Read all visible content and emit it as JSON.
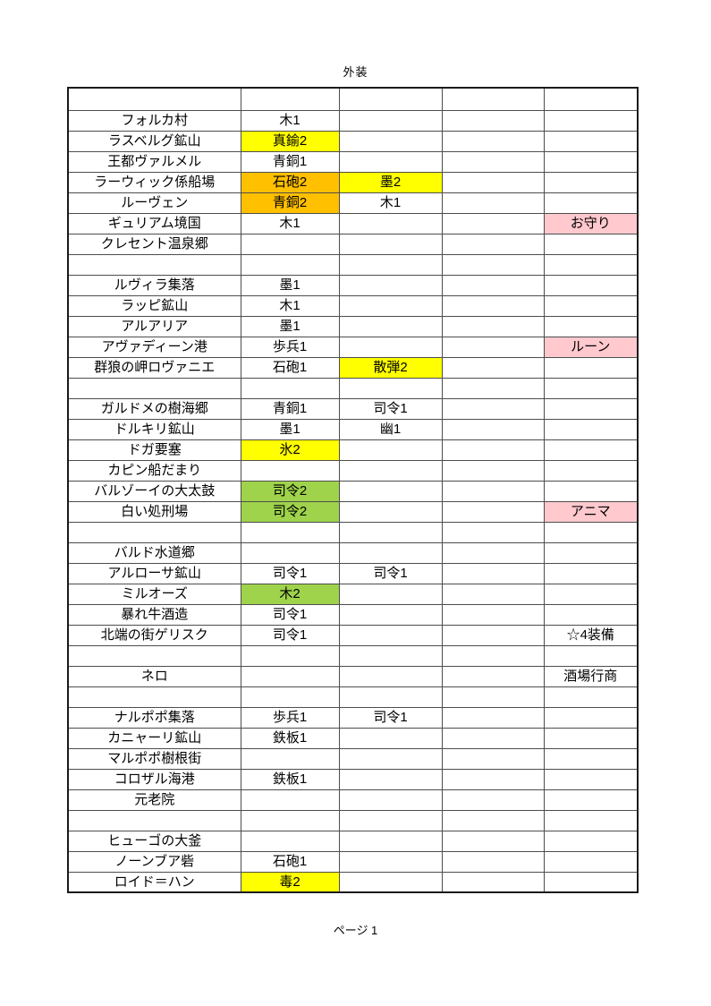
{
  "document": {
    "title": "外装",
    "footer": "ページ 1"
  },
  "colors": {
    "yellow": "#FFFF00",
    "orange": "#FFC000",
    "green": "#9ED34B",
    "pink": "#FFC9CE"
  },
  "table": {
    "columns": [
      "location",
      "item1",
      "item2",
      "spacer",
      "note"
    ],
    "rows": [
      {
        "location": "",
        "item1": "",
        "item2": "",
        "note": ""
      },
      {
        "location": "フォルカ村",
        "item1": "木1",
        "item2": "",
        "note": ""
      },
      {
        "location": "ラスベルグ鉱山",
        "item1": "真鍮2",
        "item1_fill": "yellow",
        "item2": "",
        "note": ""
      },
      {
        "location": "王都ヴァルメル",
        "item1": "青銅1",
        "item2": "",
        "note": ""
      },
      {
        "location": "ラーウィック係船場",
        "item1": "石砲2",
        "item1_fill": "orange",
        "item2": "墨2",
        "item2_fill": "yellow",
        "note": ""
      },
      {
        "location": "ルーヴェン",
        "item1": "青銅2",
        "item1_fill": "orange",
        "item2": "木1",
        "note": ""
      },
      {
        "location": "ギュリアム境国",
        "item1": "木1",
        "item2": "",
        "note": "お守り",
        "note_fill": "pink"
      },
      {
        "location": "クレセント温泉郷",
        "item1": "",
        "item2": "",
        "note": ""
      },
      {
        "location": "",
        "item1": "",
        "item2": "",
        "note": ""
      },
      {
        "location": "ルヴィラ集落",
        "item1": "墨1",
        "item2": "",
        "note": ""
      },
      {
        "location": "ラッピ鉱山",
        "item1": "木1",
        "item2": "",
        "note": ""
      },
      {
        "location": "アルアリア",
        "item1": "墨1",
        "item2": "",
        "note": ""
      },
      {
        "location": "アヴァディーン港",
        "item1": "歩兵1",
        "item2": "",
        "note": "ルーン",
        "note_fill": "pink"
      },
      {
        "location": "群狼の岬ロヴァニエ",
        "item1": "石砲1",
        "item2": "散弾2",
        "item2_fill": "yellow",
        "note": ""
      },
      {
        "location": "",
        "item1": "",
        "item2": "",
        "note": ""
      },
      {
        "location": "ガルドメの樹海郷",
        "item1": "青銅1",
        "item2": "司令1",
        "note": ""
      },
      {
        "location": "ドルキリ鉱山",
        "item1": "墨1",
        "item2": "幽1",
        "note": ""
      },
      {
        "location": "ドガ要塞",
        "item1": "氷2",
        "item1_fill": "yellow",
        "item2": "",
        "note": ""
      },
      {
        "location": "カピン船だまり",
        "item1": "",
        "item2": "",
        "note": ""
      },
      {
        "location": "バルゾーイの大太鼓",
        "item1": "司令2",
        "item1_fill": "green",
        "item2": "",
        "note": ""
      },
      {
        "location": "白い処刑場",
        "item1": "司令2",
        "item1_fill": "green",
        "item2": "",
        "note": "アニマ",
        "note_fill": "pink"
      },
      {
        "location": "",
        "item1": "",
        "item2": "",
        "note": ""
      },
      {
        "location": "バルド水道郷",
        "item1": "",
        "item2": "",
        "note": ""
      },
      {
        "location": "アルローサ鉱山",
        "item1": "司令1",
        "item2": "司令1",
        "note": ""
      },
      {
        "location": "ミルオーズ",
        "item1": "木2",
        "item1_fill": "green",
        "item2": "",
        "note": ""
      },
      {
        "location": "暴れ牛酒造",
        "item1": "司令1",
        "item2": "",
        "note": ""
      },
      {
        "location": "北端の街ゲリスク",
        "item1": "司令1",
        "item2": "",
        "note": "☆4装備"
      },
      {
        "location": "",
        "item1": "",
        "item2": "",
        "note": ""
      },
      {
        "location": "ネロ",
        "item1": "",
        "item2": "",
        "note": "酒場行商"
      },
      {
        "location": "",
        "item1": "",
        "item2": "",
        "note": ""
      },
      {
        "location": "ナルポポ集落",
        "item1": "歩兵1",
        "item2": "司令1",
        "note": ""
      },
      {
        "location": "カニャーリ鉱山",
        "item1": "鉄板1",
        "item2": "",
        "note": ""
      },
      {
        "location": "マルポポ樹根街",
        "item1": "",
        "item2": "",
        "note": ""
      },
      {
        "location": "コロザル海港",
        "item1": "鉄板1",
        "item2": "",
        "note": ""
      },
      {
        "location": "元老院",
        "item1": "",
        "item2": "",
        "note": ""
      },
      {
        "location": "",
        "item1": "",
        "item2": "",
        "note": ""
      },
      {
        "location": "ヒューゴの大釜",
        "item1": "",
        "item2": "",
        "note": ""
      },
      {
        "location": "ノーンブア砦",
        "item1": "石砲1",
        "item2": "",
        "note": ""
      },
      {
        "location": "ロイド＝ハン",
        "item1": "毒2",
        "item1_fill": "yellow",
        "item2": "",
        "note": ""
      }
    ]
  }
}
